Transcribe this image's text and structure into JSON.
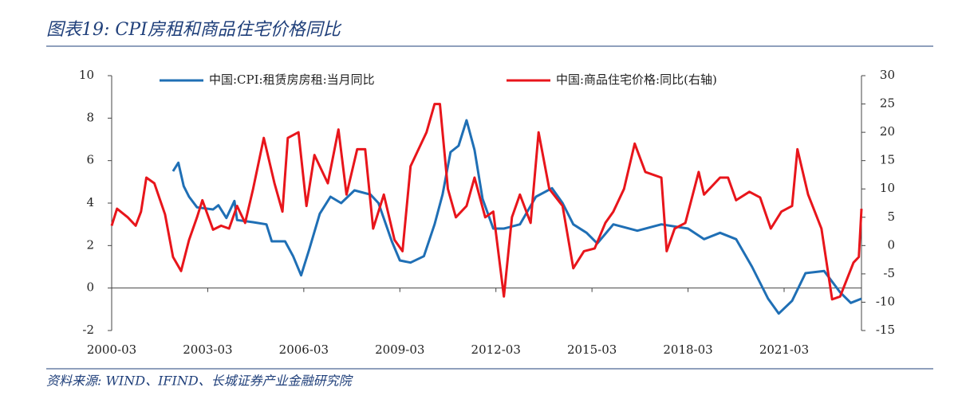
{
  "chart_data": {
    "type": "line",
    "title": "图表19:  CPI房租和商品住宅价格同比",
    "source": "资料来源:  WIND、IFIND、长城证券产业金融研究院",
    "xlim": [
      "2000-03",
      "2023-08"
    ],
    "xticks": [
      "2000-03",
      "2003-03",
      "2006-03",
      "2009-03",
      "2012-03",
      "2015-03",
      "2018-03",
      "2021-03"
    ],
    "ylim": [
      -2,
      10
    ],
    "yticks": [
      -2,
      0,
      2,
      4,
      6,
      8,
      10
    ],
    "y2lim": [
      -15,
      30
    ],
    "y2ticks": [
      -15,
      -10,
      -5,
      0,
      5,
      10,
      15,
      20,
      25,
      30
    ],
    "series": [
      {
        "name": "中国:CPI:租赁房房租:当月同比",
        "color": "#1f6fb5",
        "x": [
          "2002-02",
          "2002-04",
          "2002-06",
          "2002-08",
          "2002-11",
          "2003-05",
          "2003-07",
          "2003-10",
          "2004-01",
          "2004-02",
          "2004-08",
          "2005-01",
          "2005-03",
          "2005-08",
          "2005-11",
          "2006-02",
          "2006-05",
          "2006-09",
          "2007-01",
          "2007-05",
          "2007-10",
          "2008-04",
          "2008-07",
          "2008-12",
          "2009-03",
          "2009-07",
          "2009-12",
          "2010-04",
          "2010-07",
          "2010-10",
          "2011-01",
          "2011-04",
          "2011-07",
          "2011-10",
          "2012-02",
          "2012-06",
          "2012-12",
          "2013-06",
          "2013-12",
          "2014-04",
          "2014-08",
          "2015-01",
          "2015-05",
          "2015-11",
          "2016-08",
          "2017-05",
          "2018-03",
          "2018-09",
          "2019-03",
          "2019-09",
          "2020-03",
          "2020-09",
          "2021-01",
          "2021-06",
          "2021-11",
          "2022-06",
          "2022-12",
          "2023-04",
          "2023-08"
        ],
        "values": [
          5.5,
          5.9,
          4.8,
          4.3,
          3.8,
          3.7,
          3.9,
          3.3,
          4.1,
          3.2,
          3.1,
          3.0,
          2.2,
          2.2,
          1.5,
          0.6,
          1.8,
          3.5,
          4.3,
          4.0,
          4.6,
          4.4,
          4.0,
          2.2,
          1.3,
          1.2,
          1.5,
          3.0,
          4.4,
          6.4,
          6.7,
          7.9,
          6.5,
          4.2,
          2.8,
          2.8,
          3.0,
          4.3,
          4.7,
          4.0,
          3.0,
          2.6,
          2.1,
          3.0,
          2.7,
          3.0,
          2.8,
          2.3,
          2.6,
          2.3,
          1.0,
          -0.5,
          -1.2,
          -0.6,
          0.7,
          0.8,
          -0.2,
          -0.7,
          -0.5
        ]
      },
      {
        "name": "中国:商品住宅价格:同比(右轴)",
        "color": "#e8151b",
        "axis": "y2",
        "x": [
          "2000-03",
          "2000-05",
          "2000-09",
          "2000-12",
          "2001-02",
          "2001-04",
          "2001-07",
          "2001-11",
          "2002-02",
          "2002-05",
          "2002-08",
          "2002-11",
          "2003-01",
          "2003-05",
          "2003-08",
          "2003-11",
          "2004-02",
          "2004-05",
          "2004-08",
          "2004-12",
          "2005-04",
          "2005-07",
          "2005-09",
          "2006-01",
          "2006-04",
          "2006-07",
          "2006-12",
          "2007-04",
          "2007-07",
          "2007-11",
          "2008-02",
          "2008-05",
          "2008-09",
          "2009-01",
          "2009-04",
          "2009-07",
          "2009-10",
          "2010-01",
          "2010-04",
          "2010-06",
          "2010-09",
          "2010-12",
          "2011-04",
          "2011-07",
          "2011-11",
          "2012-02",
          "2012-06",
          "2012-09",
          "2012-12",
          "2013-04",
          "2013-07",
          "2013-11",
          "2014-04",
          "2014-08",
          "2014-12",
          "2015-04",
          "2015-08",
          "2015-11",
          "2016-03",
          "2016-07",
          "2016-11",
          "2017-05",
          "2017-07",
          "2017-10",
          "2018-02",
          "2018-07",
          "2018-09",
          "2019-03",
          "2019-06",
          "2019-09",
          "2020-02",
          "2020-06",
          "2020-10",
          "2021-02",
          "2021-06",
          "2021-08",
          "2021-12",
          "2022-05",
          "2022-09",
          "2022-12",
          "2023-05",
          "2023-07",
          "2023-08"
        ],
        "values": [
          3.5,
          6.5,
          5,
          3.5,
          6,
          12,
          11,
          5.5,
          -2,
          -4.5,
          1,
          5,
          8,
          2.8,
          3.5,
          3,
          7,
          4,
          10,
          19,
          11,
          6,
          19,
          20,
          7,
          16,
          11,
          20.5,
          9,
          17,
          17,
          3,
          9,
          1,
          -1,
          14,
          17,
          20,
          25,
          25,
          10,
          5,
          7,
          12,
          5,
          6,
          -9,
          5,
          9,
          4,
          20,
          10,
          7,
          -4,
          -1,
          -0.5,
          4,
          6,
          10,
          18,
          13,
          12,
          -1,
          3,
          4,
          13,
          9,
          12,
          12,
          8,
          9.5,
          8.5,
          3,
          6,
          7,
          17,
          9,
          3,
          -9.5,
          -9,
          -3,
          -2,
          6.5
        ]
      }
    ]
  }
}
